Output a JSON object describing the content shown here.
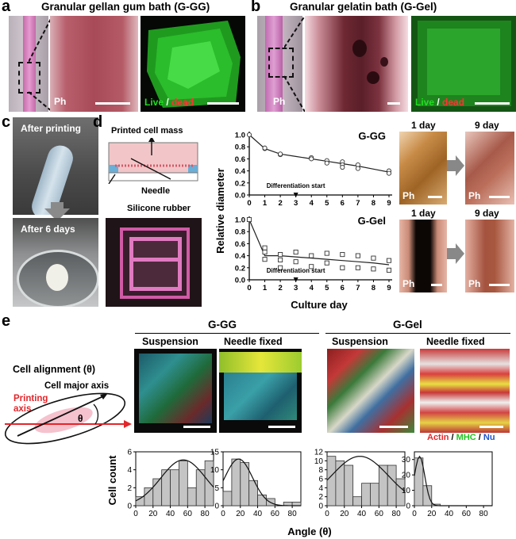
{
  "panels": {
    "a": {
      "letter": "a",
      "title": "Granular gellan gum bath (G-GG)",
      "ph": "Ph",
      "live": "Live",
      "sep": " / ",
      "dead": "dead"
    },
    "b": {
      "letter": "b",
      "title": "Granular gelatin bath (G-Gel)",
      "ph": "Ph",
      "live": "Live",
      "sep": " / ",
      "dead": "dead"
    },
    "c": {
      "letter": "c",
      "after_printing": "After printing",
      "after_6_days": "After 6 days"
    },
    "d": {
      "letter": "d",
      "schematic": {
        "printed_cell_mass": "Printed cell mass",
        "needle": "Needle",
        "silicone_rubber": "Silicone rubber"
      },
      "images": {
        "day1": "1 day",
        "day9": "9 day",
        "ph": "Ph"
      }
    },
    "e": {
      "letter": "e",
      "schematic": {
        "cell_alignment": "Cell alignment (θ)",
        "major_axis": "Cell major axis",
        "printing_axis_l1": "Printing",
        "printing_axis_l2": "axis",
        "theta": "θ"
      },
      "group_gg": "G-GG",
      "group_gel": "G-Gel",
      "suspension": "Suspension",
      "needle_fixed": "Needle fixed",
      "stain": {
        "actin": "Actin",
        "sep": " / ",
        "mhc": "MHC",
        "nu": "Nu"
      }
    }
  },
  "colors": {
    "live": "#22dd22",
    "dead": "#ff3333",
    "actin": "#e8262a",
    "mhc": "#22c422",
    "nu": "#2255cc"
  },
  "chart_data": [
    {
      "type": "scatter",
      "panel": "d-top",
      "title": "G-GG",
      "xlabel": "Culture day",
      "ylabel": "Relative diameter",
      "xlim": [
        0,
        9
      ],
      "ylim": [
        0,
        1.0
      ],
      "xticks": [
        "0",
        "1",
        "2",
        "3",
        "4",
        "5",
        "6",
        "7",
        "8",
        "9"
      ],
      "yticks": [
        "0.0",
        "0.2",
        "0.4",
        "0.6",
        "0.8",
        "1.0"
      ],
      "marker": "circle",
      "annotation": "Differentiation start",
      "annotation_x": 3,
      "points": [
        [
          0,
          1.0
        ],
        [
          1,
          0.77
        ],
        [
          1,
          0.78
        ],
        [
          2,
          0.67
        ],
        [
          2,
          0.68
        ],
        [
          4,
          0.62
        ],
        [
          4,
          0.6
        ],
        [
          5,
          0.57
        ],
        [
          5,
          0.53
        ],
        [
          6,
          0.55
        ],
        [
          6,
          0.5
        ],
        [
          6,
          0.46
        ],
        [
          7,
          0.5
        ],
        [
          7,
          0.44
        ],
        [
          9,
          0.4
        ],
        [
          9,
          0.36
        ]
      ],
      "fit": [
        [
          0,
          1.0
        ],
        [
          1,
          0.77
        ],
        [
          2,
          0.68
        ],
        [
          3,
          0.64
        ],
        [
          4,
          0.6
        ],
        [
          5,
          0.56
        ],
        [
          6,
          0.52
        ],
        [
          7,
          0.48
        ],
        [
          8,
          0.43
        ],
        [
          9,
          0.38
        ]
      ]
    },
    {
      "type": "scatter",
      "panel": "d-bottom",
      "title": "G-Gel",
      "xlabel": "Culture day",
      "ylabel": "Relative diameter",
      "xlim": [
        0,
        9
      ],
      "ylim": [
        0,
        1.0
      ],
      "xticks": [
        "0",
        "1",
        "2",
        "3",
        "4",
        "5",
        "6",
        "7",
        "8",
        "9"
      ],
      "yticks": [
        "0.0",
        "0.2",
        "0.4",
        "0.6",
        "0.8",
        "1.0"
      ],
      "marker": "square",
      "annotation": "Differentiation start",
      "annotation_x": 3,
      "points": [
        [
          0,
          1.0
        ],
        [
          1,
          0.53
        ],
        [
          1,
          0.46
        ],
        [
          1,
          0.34
        ],
        [
          2,
          0.42
        ],
        [
          2,
          0.33
        ],
        [
          2,
          0.2
        ],
        [
          3,
          0.46
        ],
        [
          3,
          0.3
        ],
        [
          4,
          0.4
        ],
        [
          4,
          0.22
        ],
        [
          5,
          0.44
        ],
        [
          5,
          0.28
        ],
        [
          6,
          0.42
        ],
        [
          6,
          0.2
        ],
        [
          7,
          0.4
        ],
        [
          7,
          0.2
        ],
        [
          8,
          0.36
        ],
        [
          8,
          0.18
        ],
        [
          9,
          0.32
        ],
        [
          9,
          0.16
        ]
      ],
      "fit": [
        [
          0,
          1.0
        ],
        [
          1,
          0.4
        ],
        [
          2,
          0.4
        ],
        [
          3,
          0.38
        ],
        [
          4,
          0.36
        ],
        [
          5,
          0.34
        ],
        [
          6,
          0.32
        ],
        [
          7,
          0.3
        ],
        [
          8,
          0.28
        ],
        [
          9,
          0.25
        ]
      ]
    },
    {
      "type": "bar",
      "panel": "e-gg-suspension",
      "categories": [
        "0-10",
        "10-20",
        "20-30",
        "30-40",
        "40-50",
        "50-60",
        "60-70",
        "70-80",
        "80-90"
      ],
      "values": [
        1,
        2,
        3,
        4,
        4,
        5,
        2,
        4,
        5
      ],
      "ylabel": "Cell count",
      "xlabel": "Angle (θ)",
      "ylim": [
        0,
        6
      ],
      "yticks": [
        "0",
        "2",
        "4",
        "6"
      ],
      "xticks": [
        "0",
        "20",
        "40",
        "60",
        "80"
      ],
      "fit_peak": 55,
      "fit_amp": 5.1,
      "fit_sd": 26
    },
    {
      "type": "bar",
      "panel": "e-gg-needle",
      "categories": [
        "0-10",
        "10-20",
        "20-30",
        "30-40",
        "40-50",
        "50-60",
        "60-70",
        "70-80",
        "80-90"
      ],
      "values": [
        4,
        13,
        12,
        7,
        3,
        2,
        0,
        1,
        1
      ],
      "ylim": [
        0,
        15
      ],
      "yticks": [
        "0",
        "5",
        "10",
        "15"
      ],
      "xticks": [
        "0",
        "20",
        "40",
        "60",
        "80"
      ],
      "fit_peak": 18,
      "fit_amp": 13,
      "fit_sd": 16
    },
    {
      "type": "bar",
      "panel": "e-gel-suspension",
      "categories": [
        "0-10",
        "10-20",
        "20-30",
        "30-40",
        "40-50",
        "50-60",
        "60-70",
        "70-80",
        "80-90"
      ],
      "values": [
        11,
        10,
        9,
        2,
        5,
        5,
        9,
        9,
        6
      ],
      "ylim": [
        0,
        12
      ],
      "yticks": [
        "0",
        "2",
        "4",
        "6",
        "8",
        "10",
        "12"
      ],
      "xticks": [
        "0",
        "20",
        "40",
        "60",
        "80"
      ],
      "fit_peak": 38,
      "fit_amp": 11,
      "fit_sd": 33
    },
    {
      "type": "bar",
      "panel": "e-gel-needle",
      "categories": [
        "0-10",
        "10-20",
        "20-30",
        "30-40",
        "40-50",
        "50-60",
        "60-70",
        "70-80",
        "80-90"
      ],
      "values": [
        31,
        13,
        1,
        0,
        0,
        0,
        0,
        0,
        0
      ],
      "ylim": [
        0,
        35
      ],
      "yticks": [
        "0",
        "10",
        "20",
        "30"
      ],
      "xticks": [
        "0",
        "20",
        "40",
        "60",
        "80"
      ],
      "fit_peak": 6,
      "fit_amp": 32,
      "fit_sd": 6
    }
  ]
}
